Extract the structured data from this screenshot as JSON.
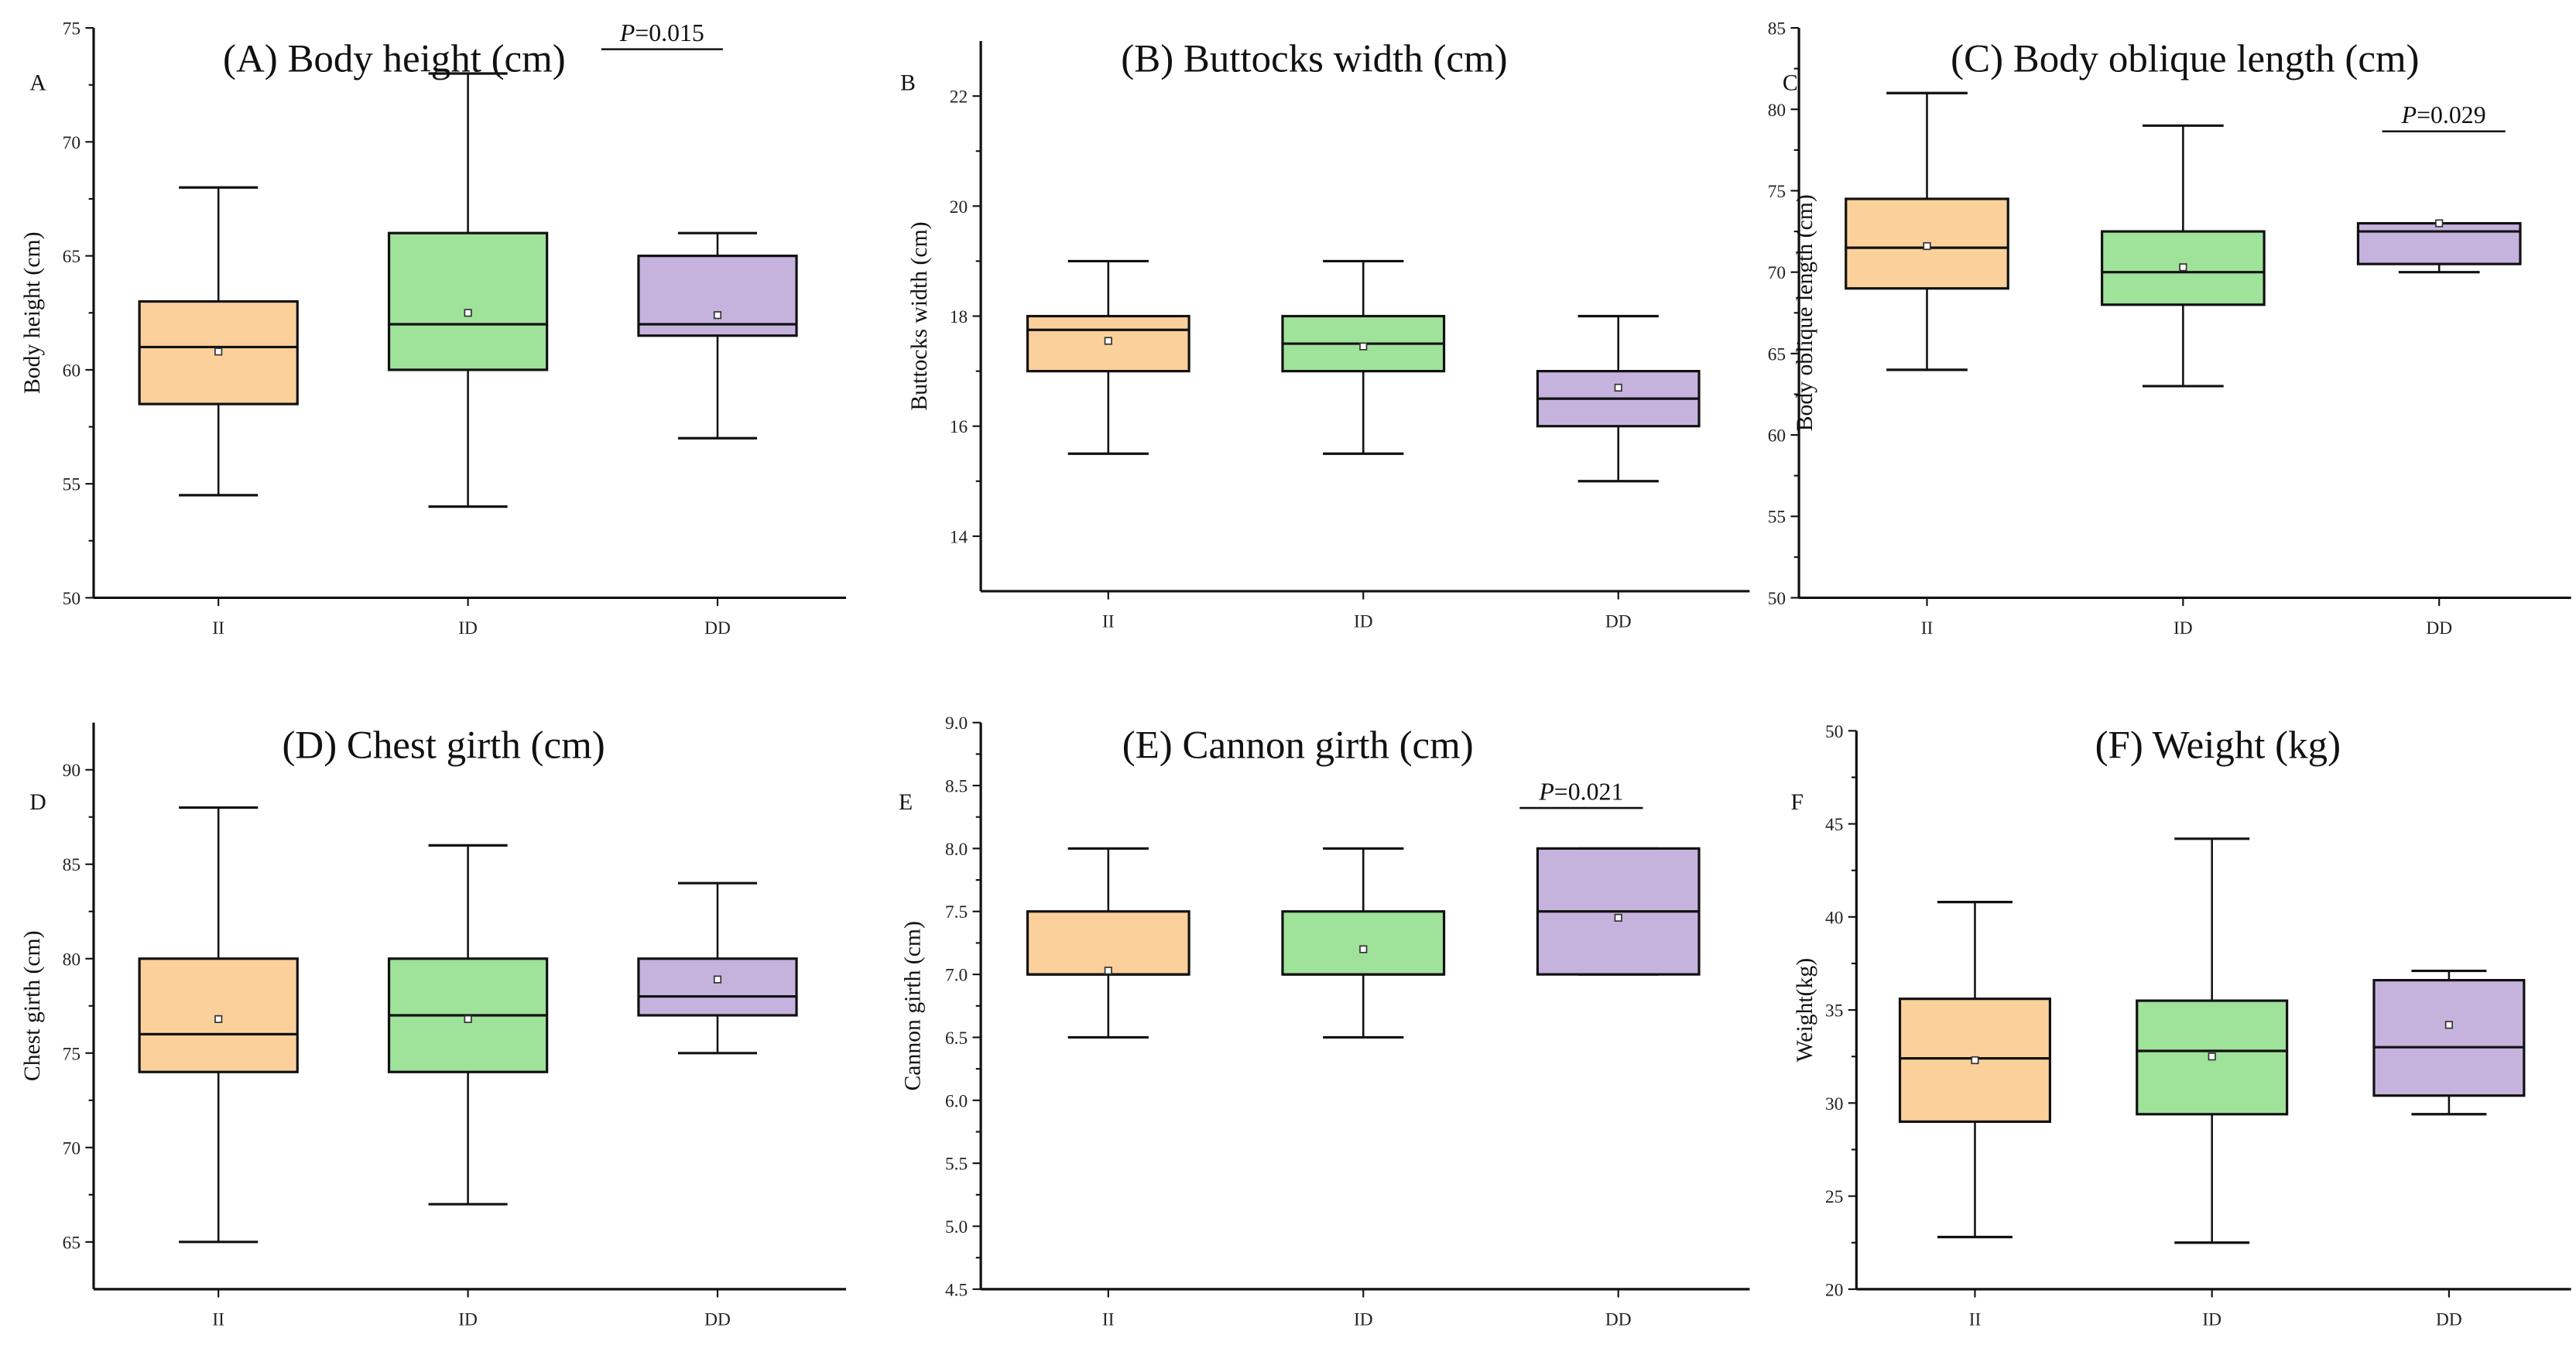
{
  "chart_data": [
    {
      "type": "box",
      "panel_letter": "A",
      "title": "(A) Body height (cm)",
      "ylabel": "Body height (cm)",
      "ylim": [
        50,
        75
      ],
      "yticks": [
        50,
        55,
        60,
        65,
        70,
        75
      ],
      "ytick_labels": [
        "50",
        "55",
        "60",
        "65",
        "70",
        "75"
      ],
      "categories": [
        "II",
        "ID",
        "DD"
      ],
      "series": [
        {
          "name": "II",
          "min": 54.5,
          "q1": 58.5,
          "median": 61,
          "q3": 63,
          "max": 68,
          "mean": 60.8
        },
        {
          "name": "ID",
          "min": 54,
          "q1": 60,
          "median": 62,
          "q3": 66,
          "max": 73,
          "mean": 62.5
        },
        {
          "name": "DD",
          "min": 57,
          "q1": 61.5,
          "median": 62,
          "q3": 65,
          "max": 66,
          "mean": 62.4
        }
      ],
      "annotation": {
        "label_italic": "P",
        "label_rest": "=0.015"
      }
    },
    {
      "type": "box",
      "panel_letter": "B",
      "title": "(B) Buttocks width (cm)",
      "ylabel": "Buttocks width (cm)",
      "ylim": [
        13,
        23
      ],
      "yticks": [
        14,
        16,
        18,
        20,
        22
      ],
      "ytick_labels": [
        "14",
        "16",
        "18",
        "20",
        "22"
      ],
      "categories": [
        "II",
        "ID",
        "DD"
      ],
      "series": [
        {
          "name": "II",
          "min": 15.5,
          "q1": 17,
          "median": 17.75,
          "q3": 18,
          "max": 19,
          "mean": 17.55
        },
        {
          "name": "ID",
          "min": 15.5,
          "q1": 17,
          "median": 17.5,
          "q3": 18,
          "max": 19,
          "mean": 17.45
        },
        {
          "name": "DD",
          "min": 15,
          "q1": 16,
          "median": 16.5,
          "q3": 17,
          "max": 18,
          "mean": 16.7
        }
      ]
    },
    {
      "type": "box",
      "panel_letter": "C",
      "title": "(C) Body oblique length (cm)",
      "ylabel": "Body oblique length (cm)",
      "ylim": [
        50,
        85
      ],
      "yticks": [
        50,
        55,
        60,
        65,
        70,
        75,
        80,
        85
      ],
      "ytick_labels": [
        "50",
        "55",
        "60",
        "65",
        "70",
        "75",
        "80",
        "85"
      ],
      "categories": [
        "II",
        "ID",
        "DD"
      ],
      "series": [
        {
          "name": "II",
          "min": 64,
          "q1": 69,
          "median": 71.5,
          "q3": 74.5,
          "max": 81,
          "mean": 71.6
        },
        {
          "name": "ID",
          "min": 63,
          "q1": 68,
          "median": 70,
          "q3": 72.5,
          "max": 79,
          "mean": 70.3
        },
        {
          "name": "DD",
          "min": 70,
          "q1": 70.5,
          "median": 72.5,
          "q3": 73,
          "max": 73,
          "mean": 73
        }
      ],
      "annotation": {
        "label_italic": "P",
        "label_rest": "=0.029"
      }
    },
    {
      "type": "box",
      "panel_letter": "D",
      "title": "(D) Chest girth (cm)",
      "ylabel": "Chest girth (cm)",
      "ylim": [
        62.5,
        92.5
      ],
      "yticks": [
        65,
        70,
        75,
        80,
        85,
        90
      ],
      "ytick_labels": [
        "65",
        "70",
        "75",
        "80",
        "85",
        "90"
      ],
      "categories": [
        "II",
        "ID",
        "DD"
      ],
      "series": [
        {
          "name": "II",
          "min": 65,
          "q1": 74,
          "median": 76,
          "q3": 80,
          "max": 88,
          "mean": 76.8
        },
        {
          "name": "ID",
          "min": 67,
          "q1": 74,
          "median": 77,
          "q3": 80,
          "max": 86,
          "mean": 76.8
        },
        {
          "name": "DD",
          "min": 75,
          "q1": 77,
          "median": 78,
          "q3": 80,
          "max": 84,
          "mean": 78.9
        }
      ]
    },
    {
      "type": "box",
      "panel_letter": "E",
      "title": "(E) Cannon girth (cm)",
      "ylabel": "Cannon girth (cm)",
      "ylim": [
        4.5,
        9.0
      ],
      "yticks": [
        4.5,
        5.0,
        5.5,
        6.0,
        6.5,
        7.0,
        7.5,
        8.0,
        8.5,
        9.0
      ],
      "ytick_labels": [
        "4.5",
        "5.0",
        "5.5",
        "6.0",
        "6.5",
        "7.0",
        "7.5",
        "8.0",
        "8.5",
        "9.0"
      ],
      "categories": [
        "II",
        "ID",
        "DD"
      ],
      "series": [
        {
          "name": "II",
          "min": 6.5,
          "q1": 7,
          "median": 7,
          "q3": 7.5,
          "max": 8,
          "mean": 7.03
        },
        {
          "name": "ID",
          "min": 6.5,
          "q1": 7,
          "median": 7,
          "q3": 7.5,
          "max": 8,
          "mean": 7.2
        },
        {
          "name": "DD",
          "min": 7,
          "q1": 7,
          "median": 7.5,
          "q3": 8,
          "max": 8,
          "mean": 7.45
        }
      ],
      "annotation": {
        "label_italic": "P",
        "label_rest": "=0.021"
      }
    },
    {
      "type": "box",
      "panel_letter": "F",
      "title": "(F) Weight (kg)",
      "ylabel": "Weight(kg)",
      "ylim": [
        20,
        50
      ],
      "yticks": [
        20,
        25,
        30,
        35,
        40,
        45,
        50
      ],
      "ytick_labels": [
        "20",
        "25",
        "30",
        "35",
        "40",
        "45",
        "50"
      ],
      "categories": [
        "II",
        "ID",
        "DD"
      ],
      "series": [
        {
          "name": "II",
          "min": 22.8,
          "q1": 29,
          "median": 32.4,
          "q3": 35.6,
          "max": 40.8,
          "mean": 32.3
        },
        {
          "name": "ID",
          "min": 22.5,
          "q1": 29.4,
          "median": 32.8,
          "q3": 35.5,
          "max": 44.2,
          "mean": 32.5
        },
        {
          "name": "DD",
          "min": 29.4,
          "q1": 30.4,
          "median": 33,
          "q3": 36.6,
          "max": 37.1,
          "mean": 34.2
        }
      ]
    }
  ],
  "colors": {
    "II": "#fbd09a",
    "ID": "#9fe29a",
    "DD": "#c5b3de",
    "line": "#111111"
  }
}
